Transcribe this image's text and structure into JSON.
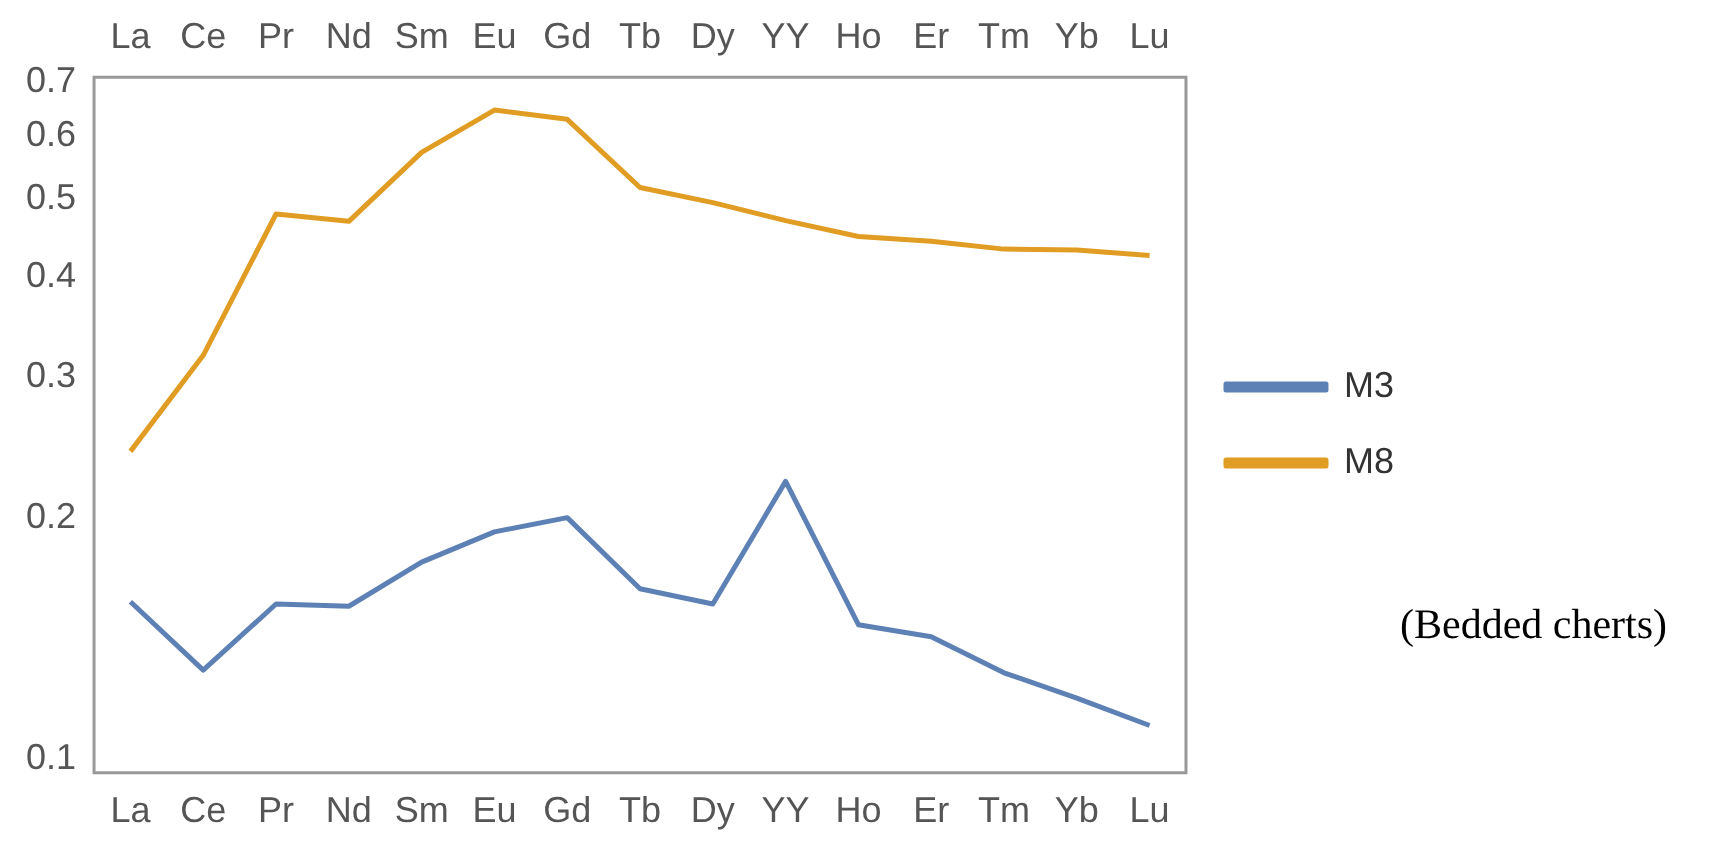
{
  "chart_data": {
    "type": "line",
    "categories": [
      "La",
      "Ce",
      "Pr",
      "Nd",
      "Sm",
      "Eu",
      "Gd",
      "Tb",
      "Dy",
      "YY",
      "Ho",
      "Er",
      "Tm",
      "Yb",
      "Lu"
    ],
    "series": [
      {
        "name": "M3",
        "color": "#5e81b5",
        "values": [
          0.157,
          0.129,
          0.156,
          0.155,
          0.176,
          0.192,
          0.2,
          0.163,
          0.156,
          0.222,
          0.147,
          0.142,
          0.128,
          0.119,
          0.11
        ]
      },
      {
        "name": "M8",
        "color": "#e19c24",
        "values": [
          0.242,
          0.319,
          0.479,
          0.469,
          0.572,
          0.646,
          0.629,
          0.517,
          0.495,
          0.47,
          0.449,
          0.443,
          0.433,
          0.432,
          0.425
        ]
      }
    ],
    "log": "y",
    "ylim": [
      0.096,
      0.71
    ],
    "yticks": [
      0.1,
      0.2,
      0.3,
      0.4,
      0.5,
      0.6,
      0.7
    ],
    "grid": false,
    "legend": "right",
    "marker": "none",
    "line_style": "solid",
    "annotations": [
      "(Bedded cherts)"
    ]
  }
}
